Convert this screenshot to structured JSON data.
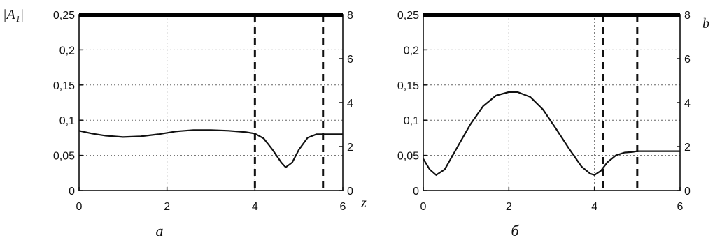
{
  "chart_data": [
    {
      "type": "line",
      "panel_label": "a",
      "y_label": "|A₁|",
      "x_label": "z",
      "right_label": "",
      "xlim": [
        0,
        6
      ],
      "ylim": [
        0,
        0.25
      ],
      "y2lim": [
        0,
        8
      ],
      "x_ticks": [
        "0",
        "2",
        "4",
        "6"
      ],
      "y_ticks": [
        "0",
        "0,05",
        "0,1",
        "0,15",
        "0,2",
        "0,25"
      ],
      "y2_ticks": [
        "0",
        "2",
        "4",
        "6",
        "8"
      ],
      "grid": true,
      "series": [
        {
          "x": [
            0,
            0.3,
            0.6,
            1.0,
            1.4,
            1.8,
            2.2,
            2.6,
            3.0,
            3.4,
            3.8,
            4.0,
            4.2,
            4.4,
            4.6,
            4.7,
            4.85,
            5.0,
            5.2,
            5.4,
            5.7,
            6.0
          ],
          "y": [
            0.085,
            0.081,
            0.078,
            0.076,
            0.077,
            0.08,
            0.084,
            0.086,
            0.086,
            0.085,
            0.083,
            0.081,
            0.074,
            0.058,
            0.04,
            0.033,
            0.04,
            0.058,
            0.075,
            0.08,
            0.08,
            0.08
          ]
        },
        {
          "x": [
            0,
            6
          ],
          "y2": [
            8,
            8
          ]
        }
      ],
      "vertical_dashed_lines_x": [
        4.0,
        5.55
      ]
    },
    {
      "type": "line",
      "panel_label": "б",
      "y_label": "",
      "x_label": "",
      "right_label": "b",
      "xlim": [
        0,
        6
      ],
      "ylim": [
        0,
        0.25
      ],
      "y2lim": [
        0,
        8
      ],
      "x_ticks": [
        "0",
        "2",
        "4",
        "6"
      ],
      "y_ticks": [
        "0",
        "0,05",
        "0,1",
        "0,15",
        "0,2",
        "0,25"
      ],
      "y2_ticks": [
        "0",
        "2",
        "4",
        "6",
        "8"
      ],
      "grid": true,
      "series": [
        {
          "x": [
            0,
            0.15,
            0.3,
            0.5,
            0.8,
            1.1,
            1.4,
            1.7,
            2.0,
            2.2,
            2.5,
            2.8,
            3.1,
            3.4,
            3.7,
            3.9,
            4.0,
            4.15,
            4.3,
            4.5,
            4.7,
            4.9,
            5.0,
            5.5,
            6.0
          ],
          "y": [
            0.045,
            0.03,
            0.022,
            0.03,
            0.062,
            0.094,
            0.12,
            0.135,
            0.14,
            0.14,
            0.133,
            0.115,
            0.088,
            0.06,
            0.034,
            0.024,
            0.022,
            0.028,
            0.04,
            0.05,
            0.054,
            0.055,
            0.056,
            0.056,
            0.056
          ]
        },
        {
          "x": [
            0,
            6
          ],
          "y2": [
            8,
            8
          ]
        }
      ],
      "vertical_dashed_lines_x": [
        4.2,
        5.0
      ]
    }
  ]
}
